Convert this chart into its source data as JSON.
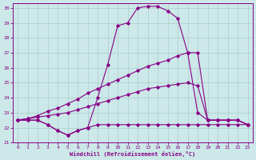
{
  "bg_color": "#cce8e8",
  "grid_color": "#aacccc",
  "line_color": "#880088",
  "xlim_min": -0.5,
  "xlim_max": 23.5,
  "ylim_min": 21.0,
  "ylim_max": 30.3,
  "yticks": [
    21,
    22,
    23,
    24,
    25,
    26,
    27,
    28,
    29,
    30
  ],
  "xticks": [
    0,
    1,
    2,
    3,
    4,
    5,
    6,
    7,
    8,
    9,
    10,
    11,
    12,
    13,
    14,
    15,
    16,
    17,
    18,
    19,
    20,
    21,
    22,
    23
  ],
  "line1_x": [
    0,
    1,
    2,
    3,
    4,
    5,
    6,
    7,
    8,
    9,
    10,
    11,
    12,
    13,
    14,
    15,
    16,
    17,
    18,
    19,
    20,
    21,
    22,
    23
  ],
  "line1_y": [
    22.5,
    22.5,
    22.5,
    22.2,
    21.8,
    21.5,
    21.8,
    22.0,
    22.2,
    22.2,
    22.2,
    22.2,
    22.2,
    22.2,
    22.2,
    22.2,
    22.2,
    22.2,
    22.2,
    22.2,
    22.2,
    22.2,
    22.2,
    22.2
  ],
  "line2_x": [
    0,
    1,
    2,
    3,
    4,
    5,
    6,
    7,
    8,
    9,
    10,
    11,
    12,
    13,
    14,
    15,
    16,
    17,
    18,
    19,
    20,
    21,
    22,
    23
  ],
  "line2_y": [
    22.5,
    22.5,
    22.5,
    22.2,
    21.8,
    21.5,
    21.8,
    22.0,
    24.0,
    26.2,
    28.8,
    29.0,
    30.0,
    30.1,
    30.1,
    29.8,
    29.3,
    27.0,
    23.0,
    22.5,
    22.5,
    22.5,
    22.5,
    22.2
  ],
  "line3_x": [
    0,
    1,
    2,
    3,
    4,
    5,
    6,
    7,
    8,
    9,
    10,
    11,
    12,
    13,
    14,
    15,
    16,
    17,
    18,
    19,
    20,
    21,
    22,
    23
  ],
  "line3_y": [
    22.5,
    22.6,
    22.8,
    23.1,
    23.3,
    23.6,
    23.9,
    24.3,
    24.6,
    24.9,
    25.2,
    25.5,
    25.8,
    26.1,
    26.3,
    26.5,
    26.8,
    27.0,
    27.0,
    22.5,
    22.5,
    22.5,
    22.5,
    22.2
  ],
  "line4_x": [
    0,
    1,
    2,
    3,
    4,
    5,
    6,
    7,
    8,
    9,
    10,
    11,
    12,
    13,
    14,
    15,
    16,
    17,
    18,
    19,
    20,
    21,
    22,
    23
  ],
  "line4_y": [
    22.5,
    22.6,
    22.7,
    22.8,
    22.9,
    23.0,
    23.2,
    23.4,
    23.6,
    23.8,
    24.0,
    24.2,
    24.4,
    24.6,
    24.7,
    24.8,
    24.9,
    25.0,
    24.8,
    22.5,
    22.5,
    22.5,
    22.5,
    22.2
  ],
  "xlabel": "Windchill (Refroidissement éolien,°C)"
}
